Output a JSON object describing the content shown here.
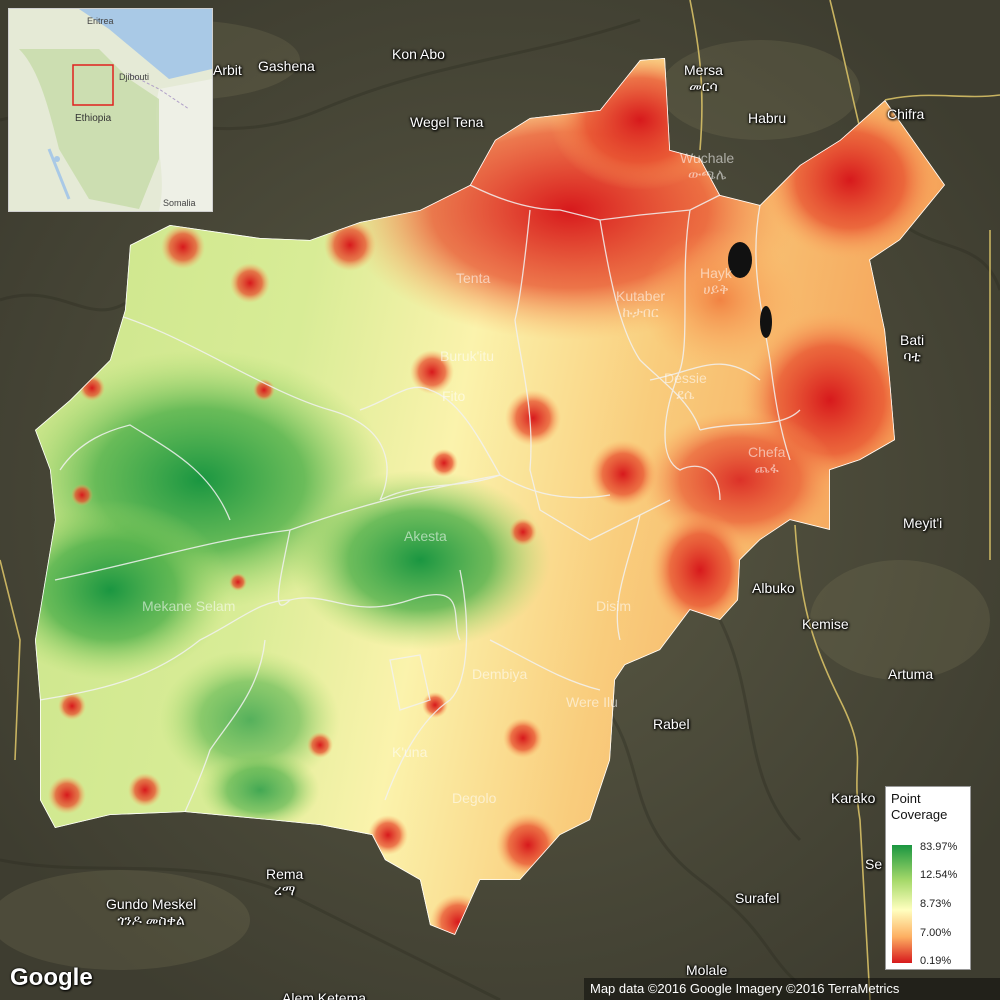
{
  "map": {
    "labels": [
      {
        "id": "kon-abo",
        "text": "Kon Abo",
        "sub": ""
      },
      {
        "id": "arbit",
        "text": "Arbit",
        "sub": ""
      },
      {
        "id": "gashena",
        "text": "Gashena",
        "sub": ""
      },
      {
        "id": "mersa",
        "text": "Mersa",
        "sub": "መርሳ"
      },
      {
        "id": "habru",
        "text": "Habru",
        "sub": ""
      },
      {
        "id": "chifra",
        "text": "Chifra",
        "sub": ""
      },
      {
        "id": "wegel-tena",
        "text": "Wegel Tena",
        "sub": ""
      },
      {
        "id": "bati",
        "text": "Bati",
        "sub": "ባቲ"
      },
      {
        "id": "meyiti",
        "text": "Meyit'i",
        "sub": ""
      },
      {
        "id": "albuko",
        "text": "Albuko",
        "sub": ""
      },
      {
        "id": "kemise",
        "text": "Kemise",
        "sub": ""
      },
      {
        "id": "artuma",
        "text": "Artuma",
        "sub": ""
      },
      {
        "id": "rabel",
        "text": "Rabel",
        "sub": ""
      },
      {
        "id": "karako",
        "text": "Karako",
        "sub": ""
      },
      {
        "id": "se",
        "text": "Se",
        "sub": ""
      },
      {
        "id": "surafel",
        "text": "Surafel",
        "sub": ""
      },
      {
        "id": "molale",
        "text": "Molale",
        "sub": ""
      },
      {
        "id": "rema",
        "text": "Rema",
        "sub": "ረማ"
      },
      {
        "id": "gundo-meskel",
        "text": "Gundo Meskel",
        "sub": "ጎንዶ መስቀል"
      },
      {
        "id": "alem-ketema",
        "text": "Alem Ketema",
        "sub": ""
      }
    ],
    "faint_labels": [
      {
        "id": "tenta",
        "text": "Tenta"
      },
      {
        "id": "kutaber",
        "text": "Kutaber",
        "sub": "ኩታበር"
      },
      {
        "id": "buruk-itu",
        "text": "Buruk'itu"
      },
      {
        "id": "fito",
        "text": "Fito"
      },
      {
        "id": "dessie",
        "text": "Dessie",
        "sub": "ደሴ"
      },
      {
        "id": "hayk",
        "text": "Hayk",
        "sub": "ሀይቅ"
      },
      {
        "id": "woldiya",
        "text": "Wuchale",
        "sub": "ውጫሌ"
      },
      {
        "id": "kombolcha",
        "text": "Chefa",
        "sub": "ጨፋ"
      },
      {
        "id": "akesta",
        "text": "Akesta"
      },
      {
        "id": "mekane-selam",
        "text": "Mekane Selam"
      },
      {
        "id": "disim",
        "text": "Disim"
      },
      {
        "id": "dembiya",
        "text": "Dembiya"
      },
      {
        "id": "were-ilu",
        "text": "Were Ilu"
      },
      {
        "id": "kuna",
        "text": "K'una"
      },
      {
        "id": "degolo",
        "text": "Degolo"
      }
    ],
    "inset": {
      "eritrea": "Eritrea",
      "djibouti": "Djibouti",
      "ethiopia": "Ethiopia",
      "somalia": "Somalia"
    },
    "legend": {
      "title_line1": "Point",
      "title_line2": "Coverage",
      "ticks": [
        "83.97%",
        "12.54%",
        "8.73%",
        "7.00%",
        "0.19%"
      ],
      "colors": [
        "#1a9641",
        "#a6d96a",
        "#ffffbf",
        "#fdae61",
        "#d7191c"
      ]
    },
    "google": "Google",
    "attribution": "Map data ©2016 Google  Imagery ©2016 TerraMetrics"
  }
}
